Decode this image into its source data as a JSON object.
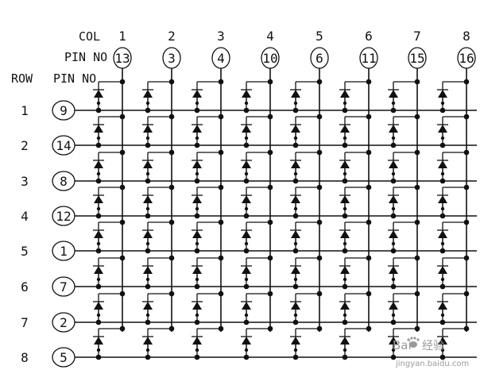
{
  "header": {
    "col_label": "COL",
    "col_pin_label": "PIN NO",
    "row_label": "ROW",
    "row_pin_label": "PIN NO"
  },
  "columns": [
    {
      "number": "1",
      "pin": "13"
    },
    {
      "number": "2",
      "pin": "3"
    },
    {
      "number": "3",
      "pin": "4"
    },
    {
      "number": "4",
      "pin": "10"
    },
    {
      "number": "5",
      "pin": "6"
    },
    {
      "number": "6",
      "pin": "11"
    },
    {
      "number": "7",
      "pin": "15"
    },
    {
      "number": "8",
      "pin": "16"
    }
  ],
  "rows": [
    {
      "number": "1",
      "pin": "9"
    },
    {
      "number": "2",
      "pin": "14"
    },
    {
      "number": "3",
      "pin": "8"
    },
    {
      "number": "4",
      "pin": "12"
    },
    {
      "number": "5",
      "pin": "1"
    },
    {
      "number": "6",
      "pin": "7"
    },
    {
      "number": "7",
      "pin": "2"
    },
    {
      "number": "8",
      "pin": "5"
    }
  ],
  "watermark": {
    "brand": "Bai",
    "brand_cn": "经验",
    "url": "jingyan.baidu.com",
    "icon": "baidu-paw-icon"
  },
  "colors": {
    "ink": "#111111",
    "watermark": "#9a9a9a"
  }
}
